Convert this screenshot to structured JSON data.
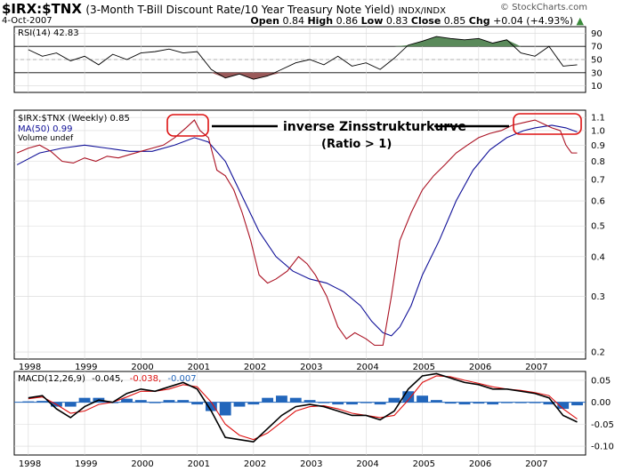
{
  "header": {
    "symbol": "$IRX:$TNX",
    "description": "(3-Month T-Bill Discount Rate/10 Year Treasury Note Yield)",
    "exchange": "INDX/INDX",
    "date": "4-Oct-2007",
    "credit": "© StockCharts.com",
    "open_label": "Open",
    "open_value": "0.84",
    "high_label": "High",
    "high_value": "0.86",
    "low_label": "Low",
    "low_value": "0.83",
    "close_label": "Close",
    "close_value": "0.85",
    "chg_label": "Chg",
    "chg_value": "+0.04 (+4.93%)"
  },
  "colors": {
    "price": "#aa1122",
    "ma": "#101098",
    "macd": "#000000",
    "signal": "#dd1111",
    "hist": "#2266bb",
    "rsi_over": "#5a8a5a",
    "rsi_under": "#9a5a5a",
    "highlight": "#dd1111",
    "grid": "#d8d8d8"
  },
  "annotation": {
    "line1": "inverse Zinsstrukturkurve",
    "line2": "(Ratio > 1)"
  },
  "chart_data": [
    {
      "type": "line",
      "panel": "rsi",
      "legend": "RSI(14) 42.83",
      "yticks": [
        "90",
        "70",
        "50",
        "30",
        "10"
      ],
      "ylim": [
        0,
        100
      ],
      "levels": [
        70,
        30
      ],
      "x": [
        1998.0,
        1998.25,
        1998.5,
        1998.75,
        1999.0,
        1999.25,
        1999.5,
        1999.75,
        2000.0,
        2000.25,
        2000.5,
        2000.75,
        2001.0,
        2001.25,
        2001.5,
        2001.75,
        2002.0,
        2002.25,
        2002.5,
        2002.75,
        2003.0,
        2003.25,
        2003.5,
        2003.75,
        2004.0,
        2004.25,
        2004.5,
        2004.75,
        2005.0,
        2005.25,
        2005.5,
        2005.75,
        2006.0,
        2006.25,
        2006.5,
        2006.75,
        2007.0,
        2007.25,
        2007.5,
        2007.75
      ],
      "values": [
        65,
        55,
        60,
        48,
        55,
        42,
        58,
        50,
        60,
        62,
        66,
        60,
        62,
        35,
        22,
        28,
        20,
        25,
        35,
        45,
        50,
        42,
        55,
        40,
        45,
        35,
        52,
        72,
        78,
        85,
        82,
        80,
        82,
        75,
        80,
        60,
        55,
        70,
        40,
        42
      ]
    },
    {
      "type": "line",
      "panel": "price",
      "scale": "log",
      "legend_price": "$IRX:$TNX (Weekly) 0.85",
      "legend_ma": "MA(50) 0.99",
      "legend_vol": "Volume undef",
      "yticks": [
        "1.1",
        "1.0",
        "0.9",
        "0.8",
        "0.7",
        "0.6",
        "0.5",
        "0.4",
        "0.3",
        "0.2"
      ],
      "ylim": [
        0.19,
        1.16
      ],
      "xticks": [
        "1998",
        "1999",
        "2000",
        "2001",
        "2002",
        "2003",
        "2004",
        "2005",
        "2006",
        "2007"
      ],
      "x": [
        1997.8,
        1998.0,
        1998.2,
        1998.4,
        1998.6,
        1998.8,
        1999.0,
        1999.2,
        1999.4,
        1999.6,
        1999.8,
        2000.0,
        2000.2,
        2000.4,
        2000.6,
        2000.8,
        2000.95,
        2001.05,
        2001.2,
        2001.35,
        2001.5,
        2001.65,
        2001.8,
        2001.95,
        2002.1,
        2002.25,
        2002.4,
        2002.6,
        2002.8,
        2002.95,
        2003.1,
        2003.3,
        2003.5,
        2003.65,
        2003.8,
        2004.0,
        2004.15,
        2004.3,
        2004.45,
        2004.6,
        2004.8,
        2005.0,
        2005.2,
        2005.4,
        2005.6,
        2005.8,
        2006.0,
        2006.2,
        2006.4,
        2006.6,
        2006.8,
        2007.0,
        2007.15,
        2007.3,
        2007.45,
        2007.55,
        2007.65,
        2007.75
      ],
      "values": [
        0.85,
        0.88,
        0.9,
        0.86,
        0.8,
        0.79,
        0.82,
        0.8,
        0.83,
        0.82,
        0.84,
        0.86,
        0.88,
        0.9,
        0.95,
        1.02,
        1.08,
        1.0,
        0.95,
        0.75,
        0.72,
        0.65,
        0.55,
        0.45,
        0.35,
        0.33,
        0.34,
        0.36,
        0.4,
        0.38,
        0.35,
        0.3,
        0.24,
        0.22,
        0.23,
        0.22,
        0.21,
        0.21,
        0.3,
        0.45,
        0.55,
        0.65,
        0.72,
        0.78,
        0.85,
        0.9,
        0.95,
        0.98,
        1.0,
        1.04,
        1.06,
        1.08,
        1.05,
        1.02,
        1.0,
        0.9,
        0.85,
        0.85
      ]
    },
    {
      "type": "line",
      "panel": "price-ma",
      "x": [
        1997.8,
        1998.2,
        1998.6,
        1999.0,
        1999.4,
        1999.8,
        2000.2,
        2000.6,
        2000.95,
        2001.2,
        2001.5,
        2001.8,
        2002.1,
        2002.4,
        2002.7,
        2003.0,
        2003.3,
        2003.6,
        2003.9,
        2004.1,
        2004.3,
        2004.45,
        2004.6,
        2004.8,
        2005.0,
        2005.3,
        2005.6,
        2005.9,
        2006.2,
        2006.5,
        2006.8,
        2007.0,
        2007.3,
        2007.55,
        2007.75
      ],
      "values": [
        0.78,
        0.85,
        0.88,
        0.9,
        0.88,
        0.86,
        0.86,
        0.9,
        0.95,
        0.92,
        0.8,
        0.62,
        0.48,
        0.4,
        0.36,
        0.34,
        0.33,
        0.31,
        0.28,
        0.25,
        0.23,
        0.225,
        0.24,
        0.28,
        0.35,
        0.45,
        0.6,
        0.75,
        0.87,
        0.95,
        1.0,
        1.02,
        1.04,
        1.02,
        0.99
      ]
    },
    {
      "type": "line",
      "panel": "macd",
      "legend_a": "MACD(12,26,9)",
      "legend_b": "-0.045,",
      "legend_c": "-0.038,",
      "legend_d": "-0.007",
      "yticks": [
        "0.05",
        "0.00",
        "-0.05",
        "-0.10"
      ],
      "ylim": [
        -0.12,
        0.07
      ],
      "xticks": [
        "1998",
        "1999",
        "2000",
        "2001",
        "2002",
        "2003",
        "2004",
        "2005",
        "2006",
        "2007"
      ],
      "x": [
        1998.0,
        1998.25,
        1998.5,
        1998.75,
        1999.0,
        1999.25,
        1999.5,
        1999.75,
        2000.0,
        2000.25,
        2000.5,
        2000.75,
        2001.0,
        2001.25,
        2001.5,
        2001.75,
        2002.0,
        2002.25,
        2002.5,
        2002.75,
        2003.0,
        2003.25,
        2003.5,
        2003.75,
        2004.0,
        2004.25,
        2004.5,
        2004.75,
        2005.0,
        2005.25,
        2005.5,
        2005.75,
        2006.0,
        2006.25,
        2006.5,
        2006.75,
        2007.0,
        2007.25,
        2007.5,
        2007.75
      ],
      "values": [
        0.01,
        0.015,
        -0.015,
        -0.035,
        -0.01,
        0.005,
        0.0,
        0.02,
        0.03,
        0.025,
        0.035,
        0.045,
        0.03,
        -0.02,
        -0.08,
        -0.085,
        -0.09,
        -0.06,
        -0.03,
        -0.01,
        -0.005,
        -0.01,
        -0.02,
        -0.03,
        -0.03,
        -0.04,
        -0.02,
        0.03,
        0.06,
        0.065,
        0.055,
        0.045,
        0.04,
        0.03,
        0.03,
        0.025,
        0.02,
        0.01,
        -0.03,
        -0.045
      ],
      "signal": [
        0.008,
        0.012,
        -0.005,
        -0.025,
        -0.02,
        -0.005,
        0.0,
        0.012,
        0.025,
        0.025,
        0.03,
        0.04,
        0.035,
        0.0,
        -0.05,
        -0.075,
        -0.085,
        -0.07,
        -0.045,
        -0.02,
        -0.01,
        -0.008,
        -0.015,
        -0.025,
        -0.03,
        -0.035,
        -0.03,
        0.005,
        0.045,
        0.06,
        0.058,
        0.05,
        0.043,
        0.035,
        0.03,
        0.027,
        0.022,
        0.015,
        -0.015,
        -0.038
      ]
    }
  ]
}
